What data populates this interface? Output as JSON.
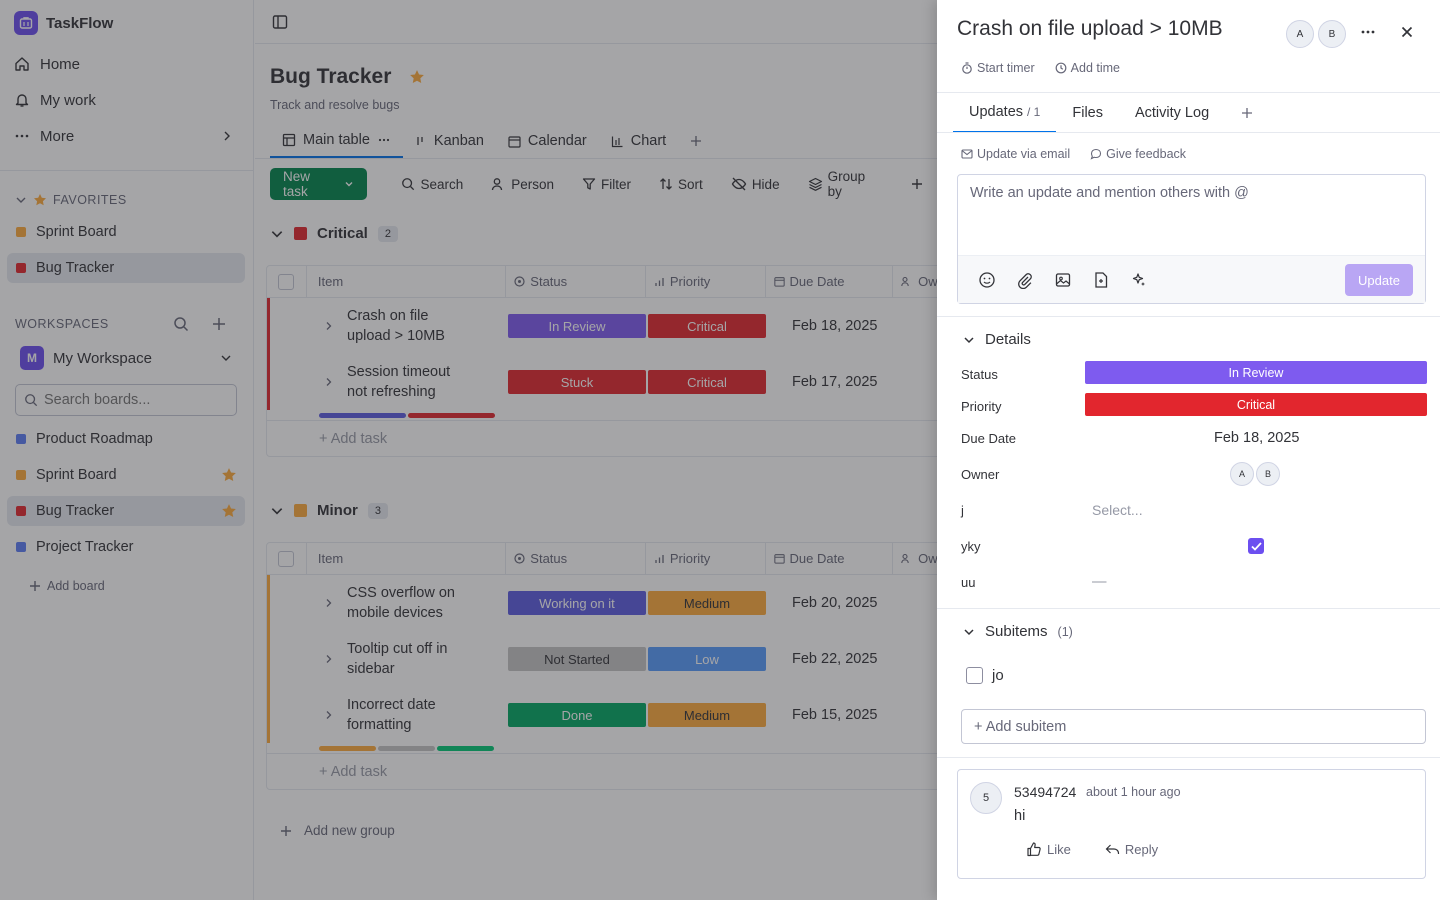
{
  "colors": {
    "accent": "#0073ea",
    "brand": "#6c4ff0",
    "new_task_green": "#00854d",
    "in_review": "#7e5bef",
    "critical": "#e2262e",
    "stuck": "#e2262e",
    "working": "#5c5ce0",
    "not_started": "#c4c4c4",
    "low": "#579bfc",
    "medium": "#fdab3d",
    "done": "#00c875",
    "critical_group": "#e2262e",
    "minor_group": "#fdab3d",
    "board_blue": "#5c7cf5",
    "board_orange": "#fdab3d",
    "board_red": "#e2262e"
  },
  "sidebar": {
    "app_name": "TaskFlow",
    "nav": [
      {
        "label": "Home",
        "icon": "home-icon"
      },
      {
        "label": "My work",
        "icon": "bell-icon"
      },
      {
        "label": "More",
        "icon": "more-dots-icon"
      }
    ],
    "favorites_label": "FAVORITES",
    "favorites": [
      {
        "label": "Sprint Board",
        "color": "#fdab3d"
      },
      {
        "label": "Bug Tracker",
        "color": "#e2262e",
        "active": true
      }
    ],
    "workspaces_label": "WORKSPACES",
    "workspace": {
      "initial": "M",
      "name": "My Workspace"
    },
    "search_placeholder": "Search boards...",
    "boards": [
      {
        "label": "Product Roadmap",
        "color": "#5c7cf5",
        "starred": false
      },
      {
        "label": "Sprint Board",
        "color": "#fdab3d",
        "starred": true
      },
      {
        "label": "Bug Tracker",
        "color": "#e2262e",
        "starred": true,
        "active": true
      },
      {
        "label": "Project Tracker",
        "color": "#5c7cf5",
        "starred": false
      }
    ],
    "add_board": "Add board"
  },
  "board": {
    "title": "Bug Tracker",
    "subtitle": "Track and resolve bugs",
    "views": [
      "Main table",
      "Kanban",
      "Calendar",
      "Chart"
    ],
    "toolbar": {
      "new_task": "New task",
      "search": "Search",
      "person": "Person",
      "filter": "Filter",
      "sort": "Sort",
      "hide": "Hide",
      "group_by": "Group by"
    },
    "columns": {
      "item": "Item",
      "status": "Status",
      "priority": "Priority",
      "due": "Due Date",
      "owner": "Ow"
    },
    "groups": [
      {
        "name": "Critical",
        "count": "2",
        "rows": [
          {
            "name": "Crash on file upload > 10MB",
            "status": "In Review",
            "priority": "Critical",
            "due": "Feb 18, 2025"
          },
          {
            "name": "Session timeout not refreshing",
            "status": "Stuck",
            "priority": "Critical",
            "due": "Feb 17, 2025"
          }
        ],
        "add_task": "+ Add task"
      },
      {
        "name": "Minor",
        "count": "3",
        "rows": [
          {
            "name": "CSS overflow on mobile devices",
            "status": "Working on it",
            "priority": "Medium",
            "due": "Feb 20, 2025"
          },
          {
            "name": "Tooltip cut off in sidebar",
            "status": "Not Started",
            "priority": "Low",
            "due": "Feb 22, 2025"
          },
          {
            "name": "Incorrect date formatting",
            "status": "Done",
            "priority": "Medium",
            "due": "Feb 15, 2025"
          }
        ],
        "add_task": "+ Add task"
      }
    ],
    "add_group": "Add new group"
  },
  "panel": {
    "title": "Crash on file upload > 10MB",
    "avatars": [
      "A",
      "B"
    ],
    "start_timer": "Start timer",
    "add_time": "Add time",
    "tabs": [
      {
        "label": "Updates",
        "count": "/ 1"
      },
      {
        "label": "Files"
      },
      {
        "label": "Activity Log"
      }
    ],
    "update_via_email": "Update via email",
    "give_feedback": "Give feedback",
    "editor_placeholder": "Write an update and mention others with @",
    "update_button": "Update",
    "details_label": "Details",
    "details": {
      "status_label": "Status",
      "status": "In Review",
      "priority_label": "Priority",
      "priority": "Critical",
      "due_label": "Due Date",
      "due": "Feb 18, 2025",
      "owner_label": "Owner",
      "owners": [
        "A",
        "B"
      ],
      "j_label": "j",
      "j_value": "Select...",
      "yky_label": "yky",
      "yky_checked": true,
      "uu_label": "uu",
      "uu_value": "—"
    },
    "subitems_label": "Subitems",
    "subitems_count": "(1)",
    "subitems": [
      {
        "label": "jo",
        "checked": false
      }
    ],
    "add_subitem": "+ Add subitem",
    "comment": {
      "avatar": "5",
      "author": "53494724",
      "time": "about 1 hour ago",
      "body": "hi",
      "like": "Like",
      "reply": "Reply"
    }
  }
}
